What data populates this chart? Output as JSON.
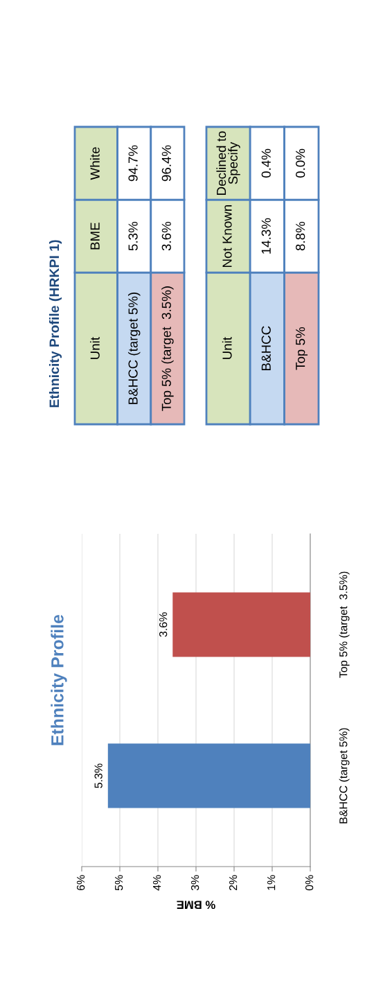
{
  "chart_data": [
    {
      "type": "bar",
      "orientation": "horizontal",
      "title": "Ethnicity Profile",
      "xlabel": "% BME",
      "categories": [
        "Top 5% (target  3.5%)",
        "B&HCC (target 5%)"
      ],
      "values": [
        3.6,
        5.3
      ],
      "colors": [
        "#c0504d",
        "#4f81bd"
      ],
      "value_labels": [
        "3.6%",
        "5.3%"
      ],
      "xlim": [
        6,
        0
      ],
      "xticks": [
        {
          "value": 6,
          "label": "6%"
        },
        {
          "value": 5,
          "label": "5%"
        },
        {
          "value": 4,
          "label": "4%"
        },
        {
          "value": 3,
          "label": "3%"
        },
        {
          "value": 2,
          "label": "2%"
        },
        {
          "value": 1,
          "label": "1%"
        },
        {
          "value": 0,
          "label": "0%"
        }
      ],
      "grid": "x"
    },
    {
      "type": "other",
      "title": "Ethnicity Profile (HRKPI 1)",
      "annotations": [
        "Unit",
        "BME",
        "White",
        "B&HCC (target 5%)",
        "5.3%",
        "94.7%",
        "Top 5% (target  3.5%)",
        "3.6%",
        "96.4%"
      ]
    },
    {
      "type": "other",
      "annotations": [
        "Unit",
        "Not Known",
        "Declined to\nSpecify",
        "B&HCC",
        "14.3%",
        "0.4%",
        "Top 5%",
        "8.8%",
        "0.0%"
      ]
    }
  ]
}
